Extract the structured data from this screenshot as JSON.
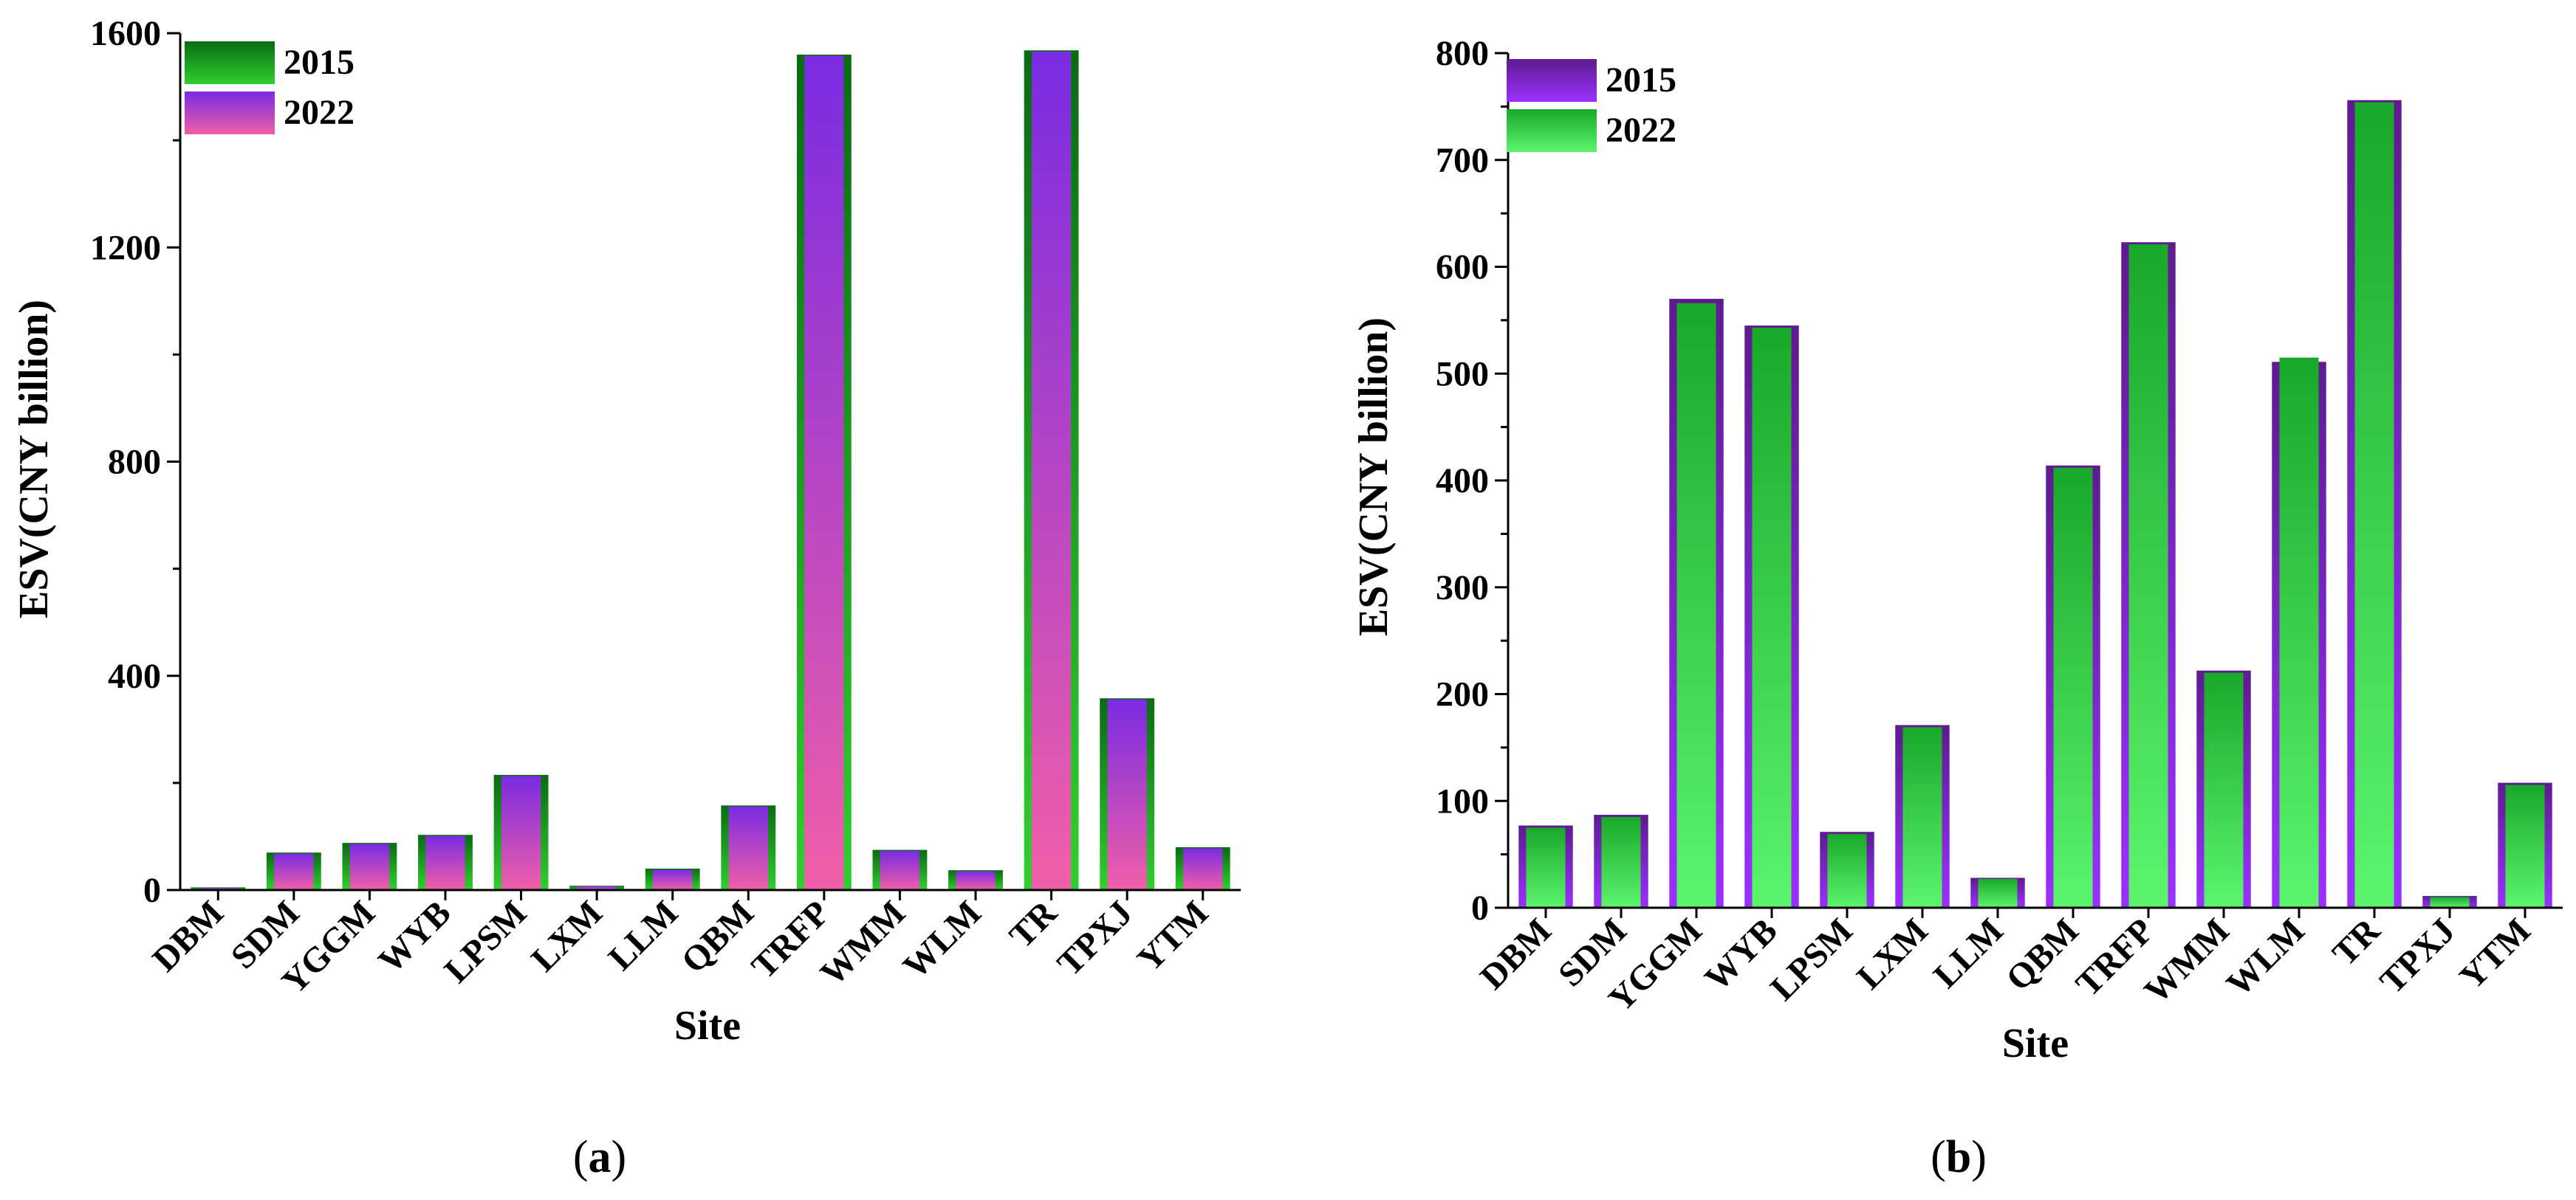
{
  "chart_data": [
    {
      "type": "bar",
      "panel_label": "a",
      "title": "",
      "xlabel": "Site",
      "ylabel": "ESV(CNY billion)",
      "ylim": [
        0,
        1600
      ],
      "yticks": [
        "0",
        "400",
        "800",
        "1200",
        "1600"
      ],
      "legend_position": "top-left",
      "categories": [
        "DBM",
        "SDM",
        "YGGM",
        "WYB",
        "LPSM",
        "LXM",
        "LLM",
        "QBM",
        "TRFP",
        "WMM",
        "WLM",
        "TR",
        "TPXJ",
        "YTM"
      ],
      "series": [
        {
          "name": "2015",
          "values": [
            5,
            70,
            88,
            103,
            215,
            8,
            40,
            158,
            1560,
            75,
            37,
            1568,
            358,
            80
          ],
          "colors": [
            "#0a6b12",
            "#2fcf2f"
          ]
        },
        {
          "name": "2022",
          "values": [
            4,
            68,
            86,
            101,
            213,
            7,
            38,
            156,
            1558,
            73,
            35,
            1566,
            356,
            78
          ],
          "colors": [
            "#7a2be2",
            "#f05fa8"
          ]
        }
      ]
    },
    {
      "type": "bar",
      "panel_label": "b",
      "title": "",
      "xlabel": "Site",
      "ylabel": "ESV(CNY billion)",
      "ylim": [
        0,
        800
      ],
      "yticks": [
        "0",
        "100",
        "200",
        "300",
        "400",
        "500",
        "600",
        "700",
        "800"
      ],
      "legend_position": "top-left",
      "categories": [
        "DBM",
        "SDM",
        "YGGM",
        "WYB",
        "LPSM",
        "LXM",
        "LLM",
        "QBM",
        "TRFP",
        "WMM",
        "WLM",
        "TR",
        "TPXJ",
        "YTM"
      ],
      "series": [
        {
          "name": "2015",
          "values": [
            77,
            87,
            570,
            545,
            71,
            171,
            28,
            414,
            623,
            222,
            511,
            756,
            11,
            117
          ],
          "colors": [
            "#5e1b8f",
            "#9b30ff"
          ]
        },
        {
          "name": "2022",
          "values": [
            75,
            85,
            566,
            543,
            69,
            169,
            27,
            412,
            621,
            220,
            515,
            754,
            10,
            115
          ],
          "colors": [
            "#1aa82a",
            "#5cf56c"
          ]
        }
      ]
    }
  ]
}
